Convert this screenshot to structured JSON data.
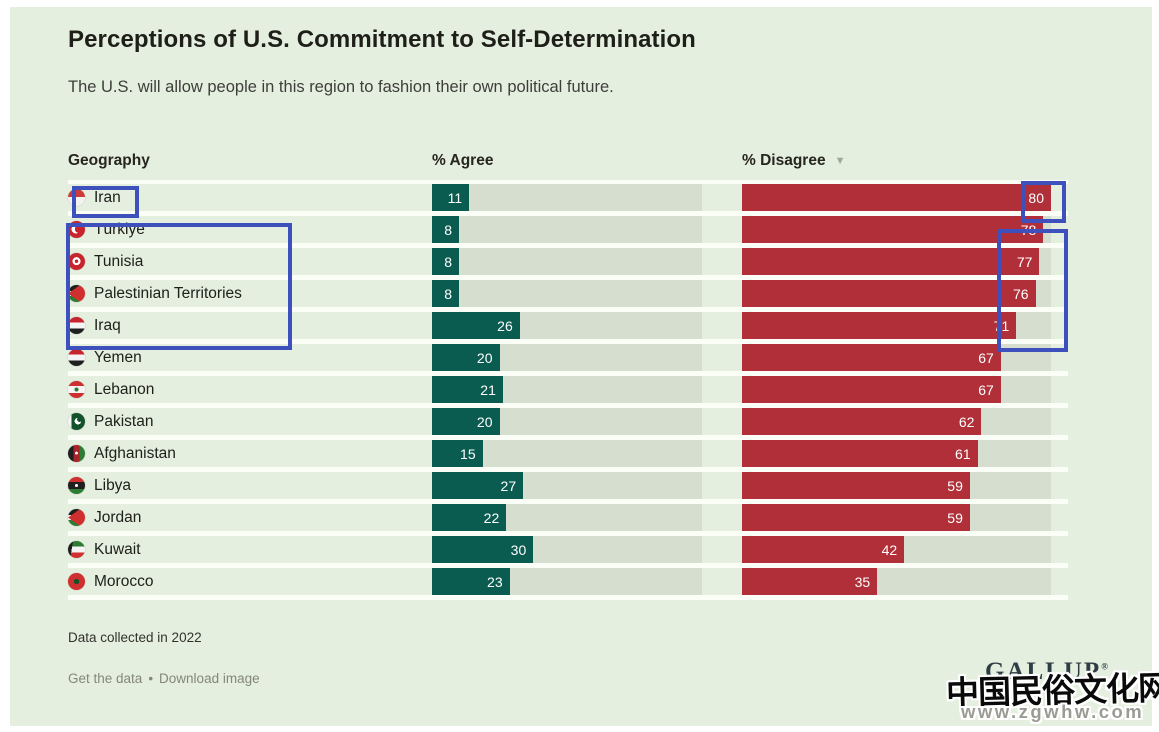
{
  "title": "Perceptions of U.S. Commitment to Self-Determination",
  "subtitle": "The U.S. will allow people in this region to fashion their own political future.",
  "columns": {
    "geography": "Geography",
    "agree": "% Agree",
    "disagree": "% Disagree"
  },
  "sort_indicator": "▼",
  "flags": [
    "iran",
    "turkiye",
    "tunisia",
    "palestinian-territories",
    "iraq",
    "yemen",
    "lebanon",
    "pakistan",
    "afghanistan",
    "libya",
    "jordan",
    "kuwait",
    "morocco"
  ],
  "chart_data": {
    "type": "bar",
    "title": "Perceptions of U.S. Commitment to Self-Determination",
    "subtitle": "The U.S. will allow people in this region to fashion their own political future.",
    "categories": [
      "Iran",
      "Türkiye",
      "Tunisia",
      "Palestinian Territories",
      "Iraq",
      "Yemen",
      "Lebanon",
      "Pakistan",
      "Afghanistan",
      "Libya",
      "Jordan",
      "Kuwait",
      "Morocco"
    ],
    "series": [
      {
        "name": "% Agree",
        "values": [
          11,
          8,
          8,
          8,
          26,
          20,
          21,
          20,
          15,
          27,
          22,
          30,
          23
        ]
      },
      {
        "name": "% Disagree",
        "values": [
          80,
          78,
          77,
          76,
          71,
          67,
          67,
          62,
          61,
          59,
          59,
          42,
          35
        ]
      }
    ],
    "axis_max": 80,
    "sort": "% Disagree descending",
    "value_labels": "inside bar, white",
    "orientation": "horizontal"
  },
  "footnote": "Data collected in 2022",
  "links": {
    "get_data": "Get the data",
    "separator": "•",
    "download": "Download image"
  },
  "brand": "GALLUP",
  "watermark": {
    "line1": "中国民俗文化网",
    "line2": "www.zgwhw.com"
  },
  "colors": {
    "background": "#e4efdf",
    "agree_bar": "#0a5c50",
    "disagree_bar": "#b02f38",
    "bar_track": "#d6decf",
    "annotation_highlight": "#3e50bb"
  }
}
